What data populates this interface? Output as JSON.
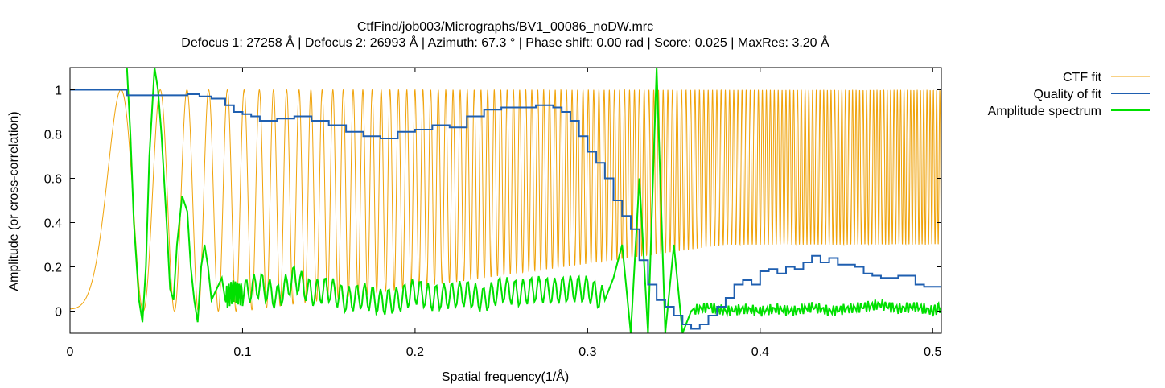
{
  "chart_data": {
    "type": "line",
    "title": "CtfFind/job003/Micrographs/BV1_00086_noDW.mrc",
    "subtitle": "Defocus 1: 27258 Å | Defocus 2: 26993 Å | Azimuth: 67.3 ° | Phase shift: 0.00 rad | Score: 0.025 | MaxRes: 3.20 Å",
    "xlabel": "Spatial frequency(1/Å)",
    "ylabel": "Amplitude (or cross-correlation)",
    "xlim": [
      0,
      0.505
    ],
    "ylim": [
      -0.1,
      1.1
    ],
    "x_ticks": [
      0,
      0.1,
      0.2,
      0.3,
      0.4,
      0.5
    ],
    "x_tick_labels": [
      "0",
      "0.1",
      "0.2",
      "0.3",
      "0.4",
      "0.5"
    ],
    "y_ticks": [
      0,
      0.2,
      0.4,
      0.6,
      0.8,
      1
    ],
    "y_tick_labels": [
      "0",
      "0.2",
      "0.4",
      "0.6",
      "0.8",
      "1"
    ],
    "grid": false,
    "legend_position": "outside-top-right",
    "series": [
      {
        "name": "CTF fit",
        "color": "#f0a30a",
        "defocus_A": 27258,
        "wavelength_A": 0.0197,
        "envelope": {
          "low_x": 0.1,
          "mid_x": 0.38,
          "min_low": 0.3
        }
      },
      {
        "name": "Quality of fit",
        "color": "#1f5fb0",
        "x": [
          0,
          0.031,
          0.033,
          0.06,
          0.068,
          0.075,
          0.082,
          0.09,
          0.095,
          0.1,
          0.105,
          0.11,
          0.12,
          0.13,
          0.14,
          0.15,
          0.16,
          0.17,
          0.18,
          0.19,
          0.2,
          0.21,
          0.22,
          0.23,
          0.24,
          0.25,
          0.26,
          0.27,
          0.28,
          0.285,
          0.29,
          0.295,
          0.3,
          0.305,
          0.31,
          0.315,
          0.32,
          0.325,
          0.33,
          0.335,
          0.34,
          0.345,
          0.35,
          0.355,
          0.36,
          0.365,
          0.37,
          0.375,
          0.38,
          0.385,
          0.39,
          0.395,
          0.4,
          0.405,
          0.41,
          0.415,
          0.42,
          0.425,
          0.43,
          0.435,
          0.44,
          0.445,
          0.45,
          0.455,
          0.46,
          0.465,
          0.47,
          0.475,
          0.48,
          0.485,
          0.49,
          0.495,
          0.5,
          0.505
        ],
        "y": [
          1.0,
          1.0,
          0.975,
          0.975,
          0.98,
          0.97,
          0.96,
          0.93,
          0.9,
          0.89,
          0.88,
          0.86,
          0.87,
          0.88,
          0.86,
          0.84,
          0.81,
          0.79,
          0.78,
          0.81,
          0.82,
          0.84,
          0.83,
          0.88,
          0.91,
          0.92,
          0.92,
          0.93,
          0.92,
          0.9,
          0.86,
          0.79,
          0.72,
          0.67,
          0.6,
          0.5,
          0.43,
          0.37,
          0.23,
          0.12,
          0.05,
          0.02,
          -0.02,
          -0.06,
          -0.08,
          -0.06,
          -0.02,
          0.02,
          0.06,
          0.12,
          0.14,
          0.12,
          0.18,
          0.19,
          0.17,
          0.2,
          0.19,
          0.22,
          0.25,
          0.22,
          0.24,
          0.21,
          0.21,
          0.2,
          0.17,
          0.16,
          0.15,
          0.15,
          0.16,
          0.16,
          0.12,
          0.11,
          0.11,
          0.11
        ]
      },
      {
        "name": "Amplitude spectrum",
        "color": "#00e000",
        "x": [
          0.033,
          0.035,
          0.037,
          0.04,
          0.042,
          0.044,
          0.046,
          0.049,
          0.051,
          0.053,
          0.056,
          0.058,
          0.06,
          0.062,
          0.065,
          0.068,
          0.07,
          0.072,
          0.074,
          0.076,
          0.078,
          0.08,
          0.082,
          0.085,
          0.088,
          0.09,
          0.095,
          0.1,
          0.11,
          0.12,
          0.13,
          0.14,
          0.15,
          0.16,
          0.17,
          0.18,
          0.19,
          0.2,
          0.21,
          0.22,
          0.23,
          0.24,
          0.25,
          0.26,
          0.27,
          0.28,
          0.29,
          0.3,
          0.31,
          0.315,
          0.32,
          0.325,
          0.33,
          0.335,
          0.34,
          0.345,
          0.35,
          0.355,
          0.36,
          0.37,
          0.38,
          0.39,
          0.4,
          0.41,
          0.42,
          0.43,
          0.44,
          0.45,
          0.46,
          0.47,
          0.48,
          0.49,
          0.5,
          0.505
        ],
        "y": [
          1.1,
          0.8,
          0.4,
          0.05,
          -0.05,
          0.2,
          0.7,
          1.1,
          1.0,
          0.8,
          0.4,
          0.1,
          0.05,
          0.3,
          0.52,
          0.45,
          0.2,
          0.05,
          -0.05,
          0.2,
          0.3,
          0.2,
          0.05,
          0.1,
          0.15,
          0.05,
          0.1,
          0.08,
          0.12,
          0.06,
          0.15,
          0.08,
          0.1,
          0.05,
          0.07,
          0.04,
          0.05,
          0.09,
          0.06,
          0.07,
          0.08,
          0.05,
          0.1,
          0.08,
          0.1,
          0.09,
          0.1,
          0.1,
          0.05,
          0.15,
          0.3,
          -0.1,
          0.6,
          -0.1,
          1.1,
          -0.1,
          0.3,
          -0.1,
          0.0,
          0.02,
          0.0,
          0.01,
          0.0,
          0.01,
          0.0,
          0.02,
          0.0,
          0.01,
          0.02,
          0.03,
          0.01,
          0.02,
          0.0,
          0.02
        ]
      }
    ]
  }
}
